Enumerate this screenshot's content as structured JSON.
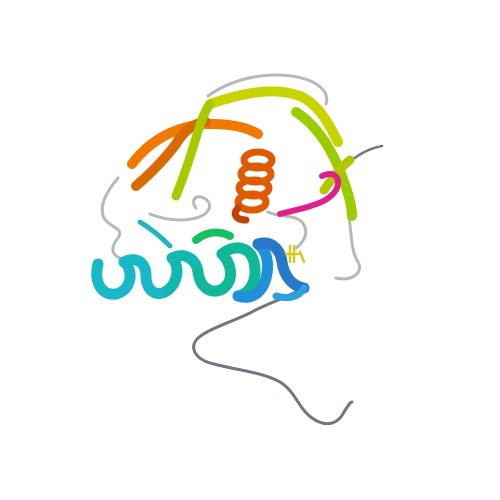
{
  "scene": {
    "background": "#ffffff",
    "subject": "protein-ribbon-structure",
    "colors": {
      "coil": "#b8b8b8",
      "tail": "#6f7785",
      "sheet_yellow": "#c8d400",
      "sheet_lime": "#9acd00",
      "sheet_orange": "#f07a00",
      "sheet_dark_orange": "#d86a00",
      "helix_orange": "#e05a00",
      "helix_red": "#c24000",
      "loop_magenta": "#e0208a",
      "helix_cyan": "#18b8c8",
      "helix_teal": "#10b89a",
      "helix_blue": "#2090d8",
      "ligand_yellow": "#d8c820"
    }
  }
}
